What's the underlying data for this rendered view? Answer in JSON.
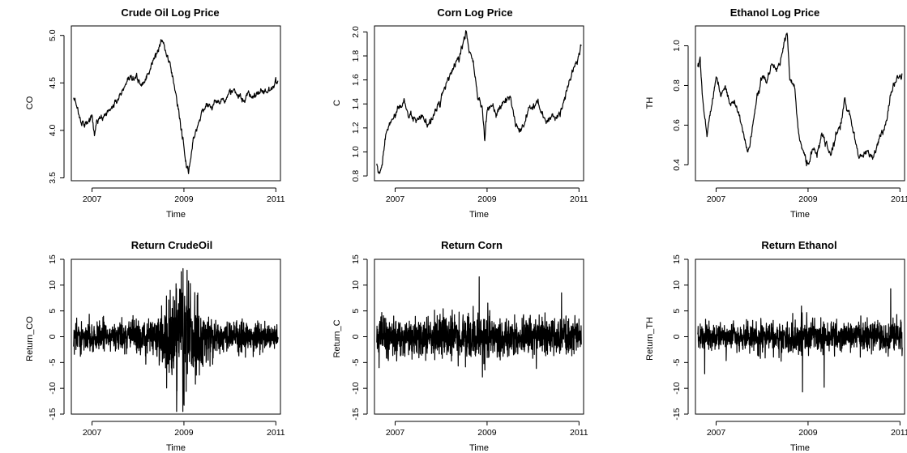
{
  "chart_data": [
    {
      "type": "line",
      "title": "Crude Oil Log Price",
      "xlabel": "Time",
      "ylabel": "CO",
      "xlim": [
        2006.55,
        2011.1
      ],
      "ylim": [
        3.47,
        5.1
      ],
      "x_ticks": [
        2007,
        2009,
        2011
      ],
      "x_tick_labels": [
        "2007",
        "2009",
        "2011"
      ],
      "y_ticks": [
        3.5,
        4.0,
        4.5,
        5.0
      ],
      "y_tick_labels": [
        "3.5",
        "4.0",
        "4.5",
        "5.0"
      ],
      "kind": "price",
      "x": [
        2006.6,
        2006.65,
        2006.7,
        2006.75,
        2006.8,
        2006.85,
        2006.92,
        2007.0,
        2007.05,
        2007.1,
        2007.2,
        2007.35,
        2007.5,
        2007.65,
        2007.8,
        2007.95,
        2008.1,
        2008.25,
        2008.35,
        2008.45,
        2008.5,
        2008.55,
        2008.6,
        2008.7,
        2008.8,
        2008.9,
        2008.95,
        2009.0,
        2009.05,
        2009.1,
        2009.15,
        2009.2,
        2009.3,
        2009.4,
        2009.5,
        2009.6,
        2009.7,
        2009.8,
        2009.9,
        2010.0,
        2010.1,
        2010.2,
        2010.3,
        2010.4,
        2010.5,
        2010.6,
        2010.7,
        2010.8,
        2010.9,
        2011.0,
        2011.05
      ],
      "y": [
        4.33,
        4.3,
        4.2,
        4.1,
        4.08,
        4.07,
        4.1,
        4.15,
        3.95,
        4.1,
        4.12,
        4.2,
        4.28,
        4.4,
        4.52,
        4.55,
        4.48,
        4.62,
        4.75,
        4.85,
        4.95,
        4.93,
        4.82,
        4.7,
        4.45,
        4.15,
        4.0,
        3.8,
        3.65,
        3.55,
        3.7,
        3.9,
        4.05,
        4.2,
        4.28,
        4.25,
        4.3,
        4.3,
        4.35,
        4.4,
        4.42,
        4.35,
        4.3,
        4.38,
        4.35,
        4.4,
        4.42,
        4.4,
        4.45,
        4.5,
        4.52
      ],
      "grid": false
    },
    {
      "type": "line",
      "title": "Corn Log Price",
      "xlabel": "Time",
      "ylabel": "C",
      "xlim": [
        2006.55,
        2011.1
      ],
      "ylim": [
        0.76,
        2.05
      ],
      "x_ticks": [
        2007,
        2009,
        2011
      ],
      "x_tick_labels": [
        "2007",
        "2009",
        "2011"
      ],
      "y_ticks": [
        0.8,
        1.0,
        1.2,
        1.4,
        1.6,
        1.8,
        2.0
      ],
      "y_tick_labels": [
        "0.8",
        "1.0",
        "1.2",
        "1.4",
        "1.6",
        "1.8",
        "2.0"
      ],
      "kind": "price",
      "x": [
        2006.6,
        2006.65,
        2006.7,
        2006.75,
        2006.8,
        2006.9,
        2007.0,
        2007.1,
        2007.2,
        2007.3,
        2007.4,
        2007.5,
        2007.6,
        2007.7,
        2007.8,
        2007.9,
        2008.0,
        2008.1,
        2008.2,
        2008.3,
        2008.4,
        2008.5,
        2008.55,
        2008.6,
        2008.7,
        2008.8,
        2008.9,
        2008.95,
        2009.0,
        2009.1,
        2009.2,
        2009.3,
        2009.4,
        2009.5,
        2009.6,
        2009.7,
        2009.8,
        2009.9,
        2010.0,
        2010.1,
        2010.2,
        2010.3,
        2010.4,
        2010.5,
        2010.6,
        2010.7,
        2010.8,
        2010.9,
        2011.0,
        2011.05
      ],
      "y": [
        0.9,
        0.8,
        0.85,
        1.0,
        1.15,
        1.25,
        1.3,
        1.38,
        1.42,
        1.3,
        1.28,
        1.25,
        1.3,
        1.2,
        1.28,
        1.35,
        1.45,
        1.55,
        1.65,
        1.72,
        1.78,
        1.95,
        2.0,
        1.85,
        1.75,
        1.45,
        1.35,
        1.1,
        1.35,
        1.4,
        1.3,
        1.38,
        1.42,
        1.48,
        1.25,
        1.15,
        1.22,
        1.35,
        1.38,
        1.4,
        1.32,
        1.25,
        1.3,
        1.28,
        1.35,
        1.45,
        1.6,
        1.72,
        1.8,
        1.88
      ],
      "grid": false
    },
    {
      "type": "line",
      "title": "Ethanol Log Price",
      "xlabel": "Time",
      "ylabel": "TH",
      "xlim": [
        2006.55,
        2011.1
      ],
      "ylim": [
        0.32,
        1.1
      ],
      "x_ticks": [
        2007,
        2009,
        2011
      ],
      "x_tick_labels": [
        "2007",
        "2009",
        "2011"
      ],
      "y_ticks": [
        0.4,
        0.6,
        0.8,
        1.0
      ],
      "y_tick_labels": [
        "0.4",
        "0.6",
        "0.8",
        "1.0"
      ],
      "kind": "price",
      "x": [
        2006.6,
        2006.65,
        2006.7,
        2006.8,
        2006.9,
        2007.0,
        2007.1,
        2007.2,
        2007.3,
        2007.4,
        2007.5,
        2007.6,
        2007.7,
        2007.8,
        2007.9,
        2008.0,
        2008.1,
        2008.2,
        2008.3,
        2008.4,
        2008.5,
        2008.55,
        2008.6,
        2008.7,
        2008.8,
        2008.9,
        2009.0,
        2009.1,
        2009.2,
        2009.3,
        2009.4,
        2009.5,
        2009.6,
        2009.7,
        2009.8,
        2009.9,
        2010.0,
        2010.1,
        2010.2,
        2010.3,
        2010.4,
        2010.5,
        2010.6,
        2010.7,
        2010.8,
        2010.9,
        2011.0,
        2011.05
      ],
      "y": [
        0.9,
        0.95,
        0.75,
        0.55,
        0.7,
        0.85,
        0.75,
        0.8,
        0.7,
        0.72,
        0.65,
        0.55,
        0.45,
        0.6,
        0.75,
        0.85,
        0.82,
        0.9,
        0.88,
        0.92,
        1.05,
        1.07,
        0.85,
        0.8,
        0.55,
        0.45,
        0.4,
        0.48,
        0.45,
        0.55,
        0.5,
        0.45,
        0.55,
        0.6,
        0.72,
        0.65,
        0.55,
        0.45,
        0.45,
        0.48,
        0.42,
        0.5,
        0.55,
        0.62,
        0.75,
        0.82,
        0.85,
        0.86
      ],
      "grid": false
    },
    {
      "type": "line",
      "title": "Return CrudeOil",
      "xlabel": "Time",
      "ylabel": "Return_CO",
      "xlim": [
        2006.55,
        2011.1
      ],
      "ylim": [
        -15,
        15
      ],
      "x_ticks": [
        2007,
        2009,
        2011
      ],
      "x_tick_labels": [
        "2007",
        "2009",
        "2011"
      ],
      "y_ticks": [
        -15,
        -10,
        -5,
        0,
        5,
        10,
        15
      ],
      "y_tick_labels": [
        "-15",
        "-10",
        "-5",
        "0",
        "5",
        "10",
        "15"
      ],
      "kind": "returns",
      "x_start": 2006.6,
      "x_end": 2011.05,
      "volatility_x": [
        2006.6,
        2007.5,
        2008.3,
        2008.6,
        2008.8,
        2009.0,
        2009.2,
        2009.4,
        2009.7,
        2010.3,
        2011.05
      ],
      "volatility_y": [
        1.8,
        2.0,
        2.5,
        4.0,
        7.5,
        8.5,
        5.5,
        3.5,
        2.2,
        2.0,
        1.7
      ],
      "extremes": [
        {
          "x": 2008.98,
          "y": 13.2
        },
        {
          "x": 2009.0,
          "y": -13.0
        },
        {
          "x": 2008.85,
          "y": -10.5
        },
        {
          "x": 2009.1,
          "y": 10.8
        }
      ],
      "grid": false
    },
    {
      "type": "line",
      "title": "Return Corn",
      "xlabel": "Time",
      "ylabel": "Return_C",
      "xlim": [
        2006.55,
        2011.1
      ],
      "ylim": [
        -15,
        15
      ],
      "x_ticks": [
        2007,
        2009,
        2011
      ],
      "x_tick_labels": [
        "2007",
        "2009",
        "2011"
      ],
      "y_ticks": [
        -15,
        -10,
        -5,
        0,
        5,
        10,
        15
      ],
      "y_tick_labels": [
        "-15",
        "-10",
        "-5",
        "0",
        "5",
        "10",
        "15"
      ],
      "kind": "returns",
      "x_start": 2006.6,
      "x_end": 2011.05,
      "volatility_x": [
        2006.6,
        2007.5,
        2008.5,
        2008.8,
        2009.2,
        2010.0,
        2011.05
      ],
      "volatility_y": [
        2.3,
        2.5,
        3.0,
        3.6,
        2.8,
        2.4,
        2.5
      ],
      "extremes": [
        {
          "x": 2008.83,
          "y": 11.6
        },
        {
          "x": 2008.9,
          "y": -7.8
        },
        {
          "x": 2010.62,
          "y": 8.5
        },
        {
          "x": 2006.65,
          "y": -6.0
        }
      ],
      "grid": false
    },
    {
      "type": "line",
      "title": "Return Ethanol",
      "xlabel": "Time",
      "ylabel": "Return_TH",
      "xlim": [
        2006.55,
        2011.1
      ],
      "ylim": [
        -15,
        15
      ],
      "x_ticks": [
        2007,
        2009,
        2011
      ],
      "x_tick_labels": [
        "2007",
        "2009",
        "2011"
      ],
      "y_ticks": [
        -15,
        -10,
        -5,
        0,
        5,
        10,
        15
      ],
      "y_tick_labels": [
        "-15",
        "-10",
        "-5",
        "0",
        "5",
        "10",
        "15"
      ],
      "kind": "returns",
      "x_start": 2006.6,
      "x_end": 2011.05,
      "volatility_x": [
        2006.6,
        2007.5,
        2008.5,
        2008.9,
        2009.3,
        2010.0,
        2011.05
      ],
      "volatility_y": [
        1.8,
        1.8,
        2.2,
        2.6,
        2.0,
        1.8,
        2.0
      ],
      "extremes": [
        {
          "x": 2010.8,
          "y": 9.3
        },
        {
          "x": 2008.88,
          "y": -10.7
        },
        {
          "x": 2009.35,
          "y": -9.8
        },
        {
          "x": 2006.75,
          "y": -7.2
        }
      ],
      "grid": false
    }
  ]
}
